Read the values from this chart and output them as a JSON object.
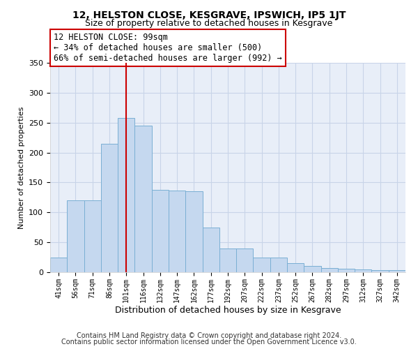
{
  "title": "12, HELSTON CLOSE, KESGRAVE, IPSWICH, IP5 1JT",
  "subtitle": "Size of property relative to detached houses in Kesgrave",
  "xlabel": "Distribution of detached houses by size in Kesgrave",
  "ylabel": "Number of detached properties",
  "categories": [
    "41sqm",
    "56sqm",
    "71sqm",
    "86sqm",
    "101sqm",
    "116sqm",
    "132sqm",
    "147sqm",
    "162sqm",
    "177sqm",
    "192sqm",
    "207sqm",
    "222sqm",
    "237sqm",
    "252sqm",
    "267sqm",
    "282sqm",
    "297sqm",
    "312sqm",
    "327sqm",
    "342sqm"
  ],
  "values": [
    25,
    120,
    120,
    215,
    258,
    245,
    138,
    137,
    135,
    75,
    40,
    40,
    25,
    25,
    15,
    10,
    7,
    6,
    5,
    3,
    3
  ],
  "bar_color": "#c5d8ef",
  "bar_edge_color": "#7aafd4",
  "vline_x_index": 4,
  "vline_color": "#cc0000",
  "annotation_text": "12 HELSTON CLOSE: 99sqm\n← 34% of detached houses are smaller (500)\n66% of semi-detached houses are larger (992) →",
  "annotation_box_color": "#ffffff",
  "annotation_box_edge": "#cc0000",
  "ylim": [
    0,
    350
  ],
  "background_color": "#ffffff",
  "plot_bg_color": "#e8eef8",
  "grid_color": "#c8d4e8",
  "footer_line1": "Contains HM Land Registry data © Crown copyright and database right 2024.",
  "footer_line2": "Contains public sector information licensed under the Open Government Licence v3.0.",
  "title_fontsize": 10,
  "subtitle_fontsize": 9
}
